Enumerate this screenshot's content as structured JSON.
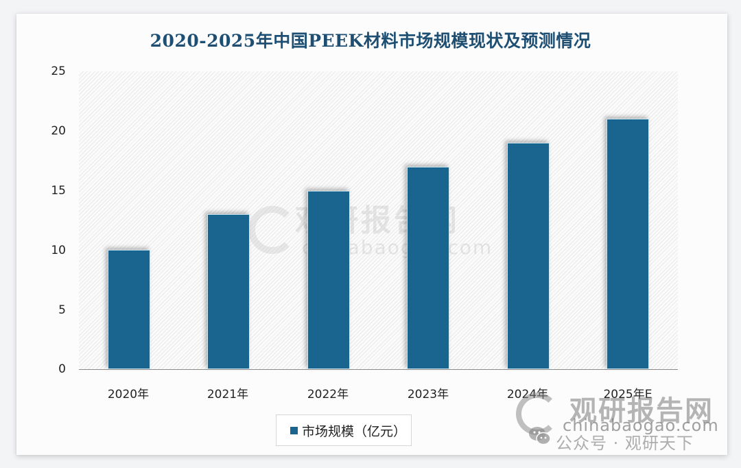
{
  "chart_data": {
    "type": "bar",
    "title": "2020-2025年中国PEEK材料市场规模现状及预测情况",
    "categories": [
      "2020年",
      "2021年",
      "2022年",
      "2023年",
      "2024年",
      "2025年E"
    ],
    "series": [
      {
        "name": "市场规模（亿元）",
        "values": [
          10,
          13,
          15,
          17,
          19,
          21
        ],
        "color": "#1a6590"
      }
    ],
    "xlabel": "",
    "ylabel": "",
    "ylim": [
      0,
      25
    ],
    "yticks": [
      0,
      5,
      10,
      15,
      20,
      25
    ],
    "grid": false,
    "legend_position": "bottom"
  },
  "title": "2020-2025年中国PEEK材料市场规模现状及预测情况",
  "yaxis": {
    "ticks": [
      "25",
      "20",
      "15",
      "10",
      "5",
      "0"
    ]
  },
  "xaxis": {
    "labels": [
      "2020年",
      "2021年",
      "2022年",
      "2023年",
      "2024年",
      "2025年E"
    ]
  },
  "legend": {
    "label": "市场规模（亿元）"
  },
  "watermark": {
    "center_title": "观研报告网",
    "center_url": "chinabaogao.com",
    "corner_title": "观研报告网",
    "corner_url": "chinabaogao.com",
    "wechat": "公众号 · 观研天下"
  }
}
